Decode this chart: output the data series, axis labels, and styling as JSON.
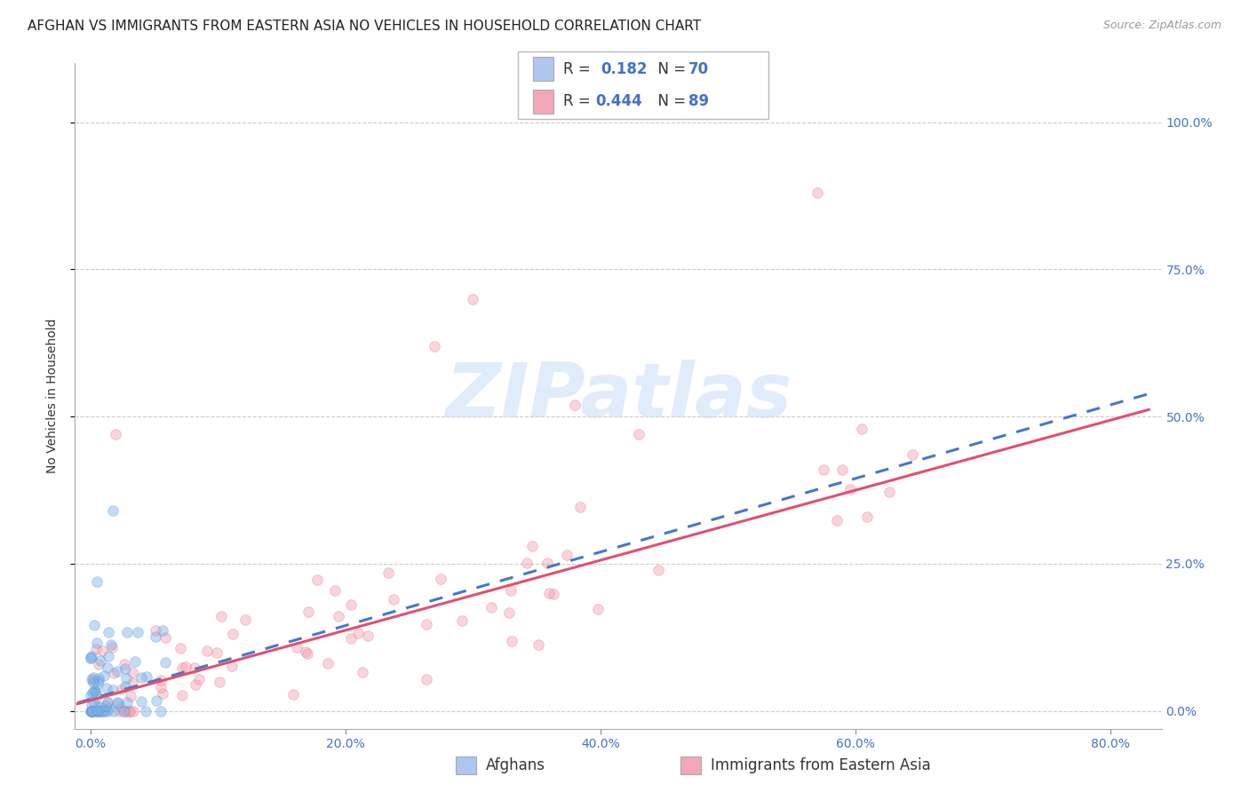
{
  "title": "AFGHAN VS IMMIGRANTS FROM EASTERN ASIA NO VEHICLES IN HOUSEHOLD CORRELATION CHART",
  "source": "Source: ZipAtlas.com",
  "xlabel_tick_vals": [
    0.0,
    0.2,
    0.4,
    0.6,
    0.8
  ],
  "ylabel_tick_vals": [
    0.0,
    0.25,
    0.5,
    0.75,
    1.0
  ],
  "xlim": [
    -0.012,
    0.84
  ],
  "ylim": [
    -0.03,
    1.1
  ],
  "ylabel": "No Vehicles in Household",
  "legend_entries": [
    {
      "label_r": "R =  0.182",
      "label_n": "N = 70",
      "color": "#aec6f0"
    },
    {
      "label_r": "R = 0.444",
      "label_n": "N = 89",
      "color": "#f4a7b9"
    }
  ],
  "series_afghan": {
    "color": "#7ab0e8",
    "edge_color": "#5590d0",
    "marker_size": 70,
    "alpha": 0.45,
    "line_color": "#4477cc",
    "line_style": "--"
  },
  "series_eastern_asia": {
    "color": "#f4a0b0",
    "edge_color": "#e06880",
    "marker_size": 70,
    "alpha": 0.45,
    "line_color": "#e05070",
    "line_style": "-"
  },
  "watermark": "ZIPatlas",
  "background_color": "#ffffff",
  "grid_color": "#cccccc",
  "grid_style": "--",
  "title_fontsize": 11,
  "ylabel_fontsize": 10,
  "tick_fontsize": 10,
  "source_fontsize": 9,
  "legend_fontsize": 12
}
